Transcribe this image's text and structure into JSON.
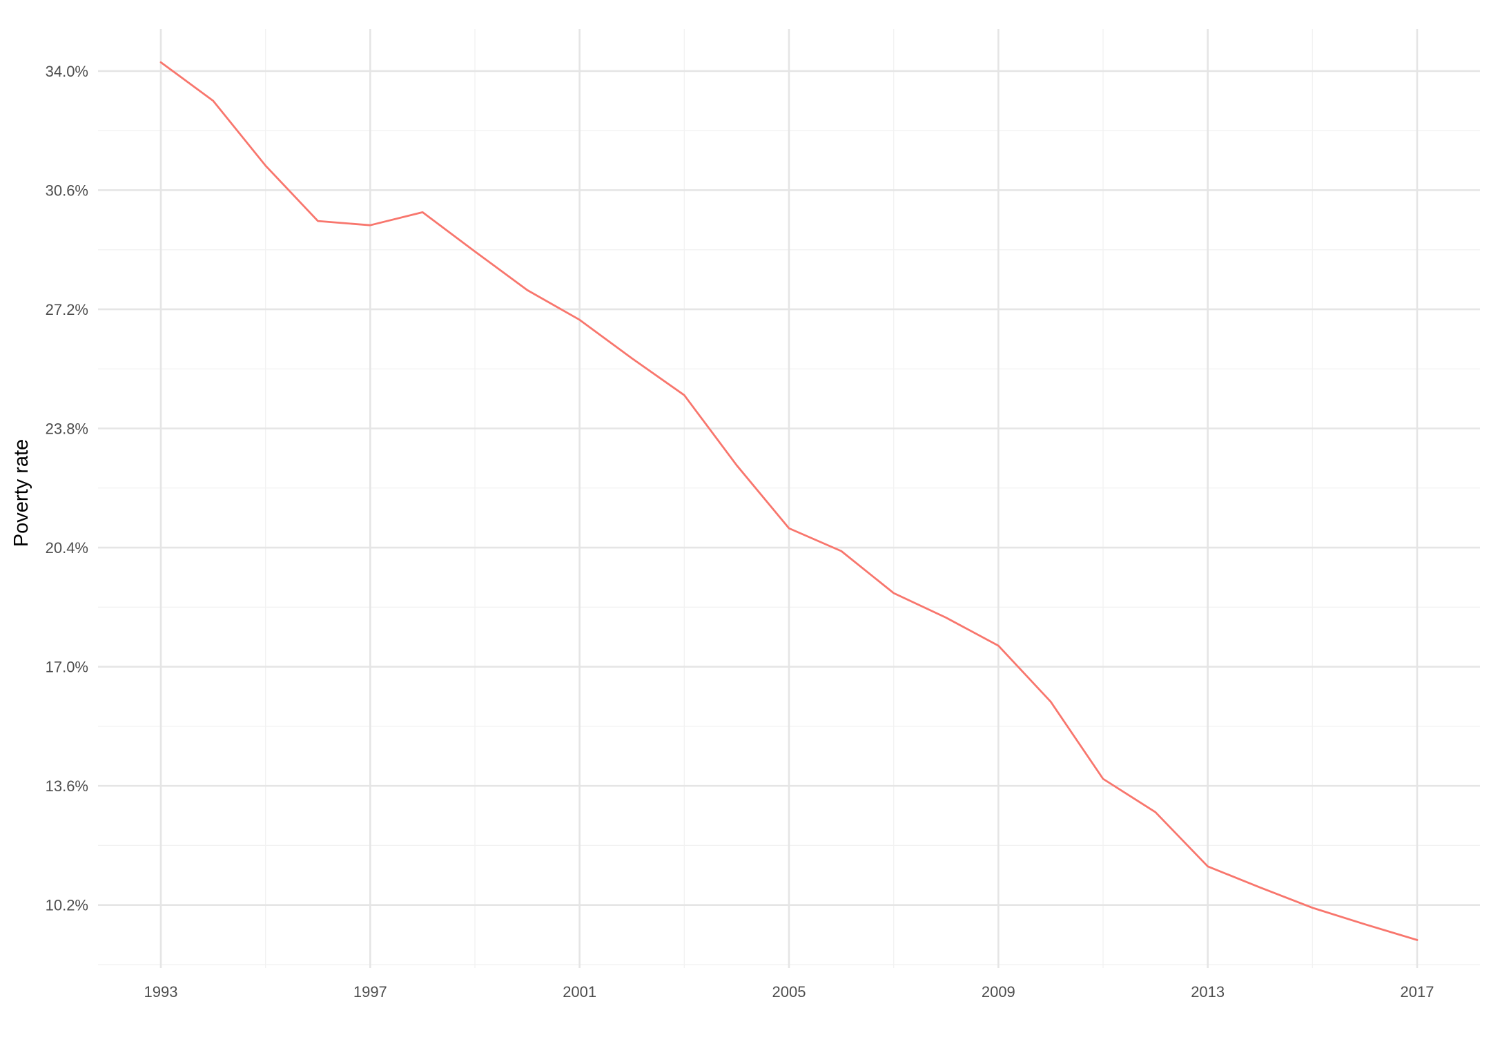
{
  "chart_data": {
    "type": "line",
    "title": "",
    "xlabel": "",
    "ylabel": "Poverty rate",
    "x_ticks": [
      1993,
      1997,
      2001,
      2005,
      2009,
      2013,
      2017
    ],
    "y_ticks": [
      10.2,
      13.6,
      17.0,
      20.4,
      23.8,
      27.2,
      30.6,
      34.0
    ],
    "y_tick_labels": [
      "10.2%",
      "13.6%",
      "17.0%",
      "20.4%",
      "23.8%",
      "27.2%",
      "30.6%",
      "34.0%"
    ],
    "xlim": [
      1991.8,
      2018.2
    ],
    "ylim": [
      8.4,
      35.2
    ],
    "grid": true,
    "legend": "none",
    "colors": {
      "series": "#f8766d",
      "grid_major": "#e5e5e5",
      "grid_minor": "#f2f2f2",
      "tick_text": "#4d4d4d"
    },
    "series": [
      {
        "x": [
          1993,
          1994,
          1995,
          1996,
          1997,
          1998,
          1999,
          2000,
          2001,
          2002,
          2003,
          2004,
          2005,
          2006,
          2007,
          2008,
          2009,
          2010,
          2011,
          2012,
          2013,
          2014,
          2015,
          2016,
          2017
        ],
        "values": [
          34.25,
          33.15,
          31.3,
          29.72,
          29.6,
          29.97,
          28.85,
          27.75,
          26.9,
          25.8,
          24.75,
          22.75,
          20.95,
          20.3,
          19.1,
          18.4,
          17.6,
          16.0,
          13.8,
          12.85,
          11.3,
          10.7,
          10.12,
          9.65,
          9.2
        ]
      }
    ]
  }
}
